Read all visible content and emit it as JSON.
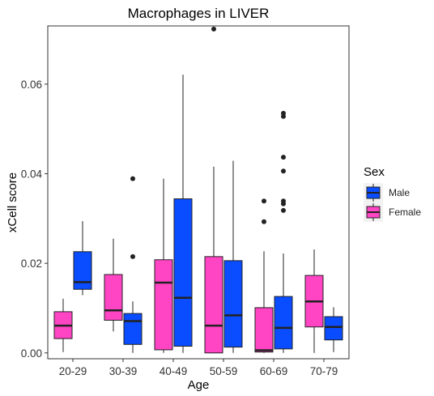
{
  "chart_data": {
    "type": "boxplot",
    "title": "Macrophages in LIVER",
    "xlabel": "Age",
    "ylabel": "xCell score",
    "ylim": [
      -0.0013,
      0.073
    ],
    "yticks": [
      0.0,
      0.02,
      0.04,
      0.06
    ],
    "ytick_labels": [
      "0.00",
      "0.02",
      "0.04",
      "0.06"
    ],
    "categories": [
      "20-29",
      "30-39",
      "40-49",
      "50-59",
      "60-69",
      "70-79"
    ],
    "grid": false,
    "legend": {
      "title": "Sex",
      "placement": "right"
    },
    "series": [
      {
        "name": "Female",
        "color": "#ff44c4",
        "boxes": [
          {
            "whisker_low": 0.0002,
            "q1": 0.0032,
            "median": 0.0061,
            "q3": 0.0092,
            "whisker_high": 0.0121,
            "outliers": []
          },
          {
            "whisker_low": 0.0048,
            "q1": 0.0073,
            "median": 0.0095,
            "q3": 0.0175,
            "whisker_high": 0.0255,
            "outliers": []
          },
          {
            "whisker_low": 0.0,
            "q1": 0.0007,
            "median": 0.0157,
            "q3": 0.0208,
            "whisker_high": 0.0389,
            "outliers": []
          },
          {
            "whisker_low": 0.0,
            "q1": 0.0,
            "median": 0.0061,
            "q3": 0.0215,
            "whisker_high": 0.0416,
            "outliers": [
              0.0723
            ]
          },
          {
            "whisker_low": 0.0,
            "q1": 0.0002,
            "median": 0.0006,
            "q3": 0.0101,
            "whisker_high": 0.0227,
            "outliers": [
              0.0293,
              0.0339
            ]
          },
          {
            "whisker_low": 0.0,
            "q1": 0.0058,
            "median": 0.0115,
            "q3": 0.0173,
            "whisker_high": 0.0231,
            "outliers": []
          }
        ]
      },
      {
        "name": "Male",
        "color": "#0a4cff",
        "boxes": [
          {
            "whisker_low": 0.0129,
            "q1": 0.0142,
            "median": 0.0158,
            "q3": 0.0226,
            "whisker_high": 0.0294,
            "outliers": []
          },
          {
            "whisker_low": 0.0,
            "q1": 0.0019,
            "median": 0.0071,
            "q3": 0.0088,
            "whisker_high": 0.0115,
            "outliers": [
              0.0215,
              0.0389
            ]
          },
          {
            "whisker_low": 0.0,
            "q1": 0.0015,
            "median": 0.0123,
            "q3": 0.0344,
            "whisker_high": 0.0621,
            "outliers": []
          },
          {
            "whisker_low": 0.0,
            "q1": 0.0013,
            "median": 0.0084,
            "q3": 0.0206,
            "whisker_high": 0.0429,
            "outliers": []
          },
          {
            "whisker_low": 0.0,
            "q1": 0.0009,
            "median": 0.0056,
            "q3": 0.0126,
            "whisker_high": 0.0222,
            "outliers": [
              0.0318,
              0.0333,
              0.0339,
              0.0406,
              0.0437,
              0.0528,
              0.0535
            ]
          },
          {
            "whisker_low": 0.0002,
            "q1": 0.0029,
            "median": 0.0058,
            "q3": 0.0081,
            "whisker_high": 0.0102,
            "outliers": []
          }
        ]
      }
    ],
    "legend_order": [
      "Male",
      "Female"
    ]
  }
}
